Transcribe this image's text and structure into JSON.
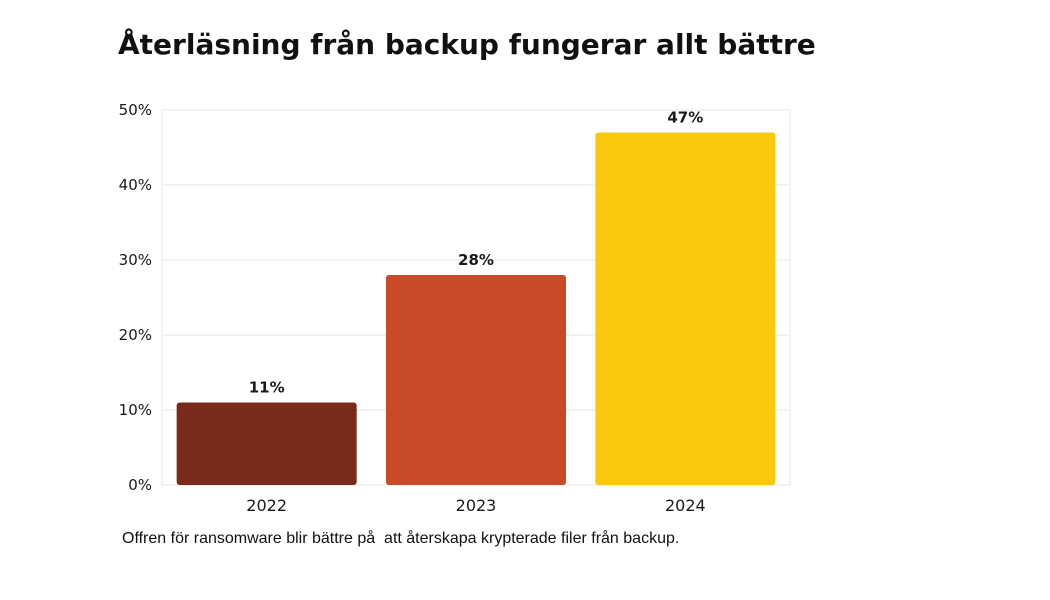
{
  "title": "Återläsning från backup fungerar allt bättre",
  "caption": "Offren för ransomware blir bättre på  att återskapa krypterade filer från backup.",
  "chart_data": {
    "type": "bar",
    "categories": [
      "2022",
      "2023",
      "2024"
    ],
    "values": [
      11,
      28,
      47
    ],
    "value_labels": [
      "11%",
      "28%",
      "47%"
    ],
    "colors": [
      "#7a2a18",
      "#c94a26",
      "#fbc70a"
    ],
    "ylim": [
      0,
      50
    ],
    "yticks": [
      0,
      10,
      20,
      30,
      40,
      50
    ],
    "ytick_labels": [
      "0%",
      "10%",
      "20%",
      "30%",
      "40%",
      "50%"
    ],
    "xlabel": "",
    "ylabel": "",
    "grid": true
  }
}
